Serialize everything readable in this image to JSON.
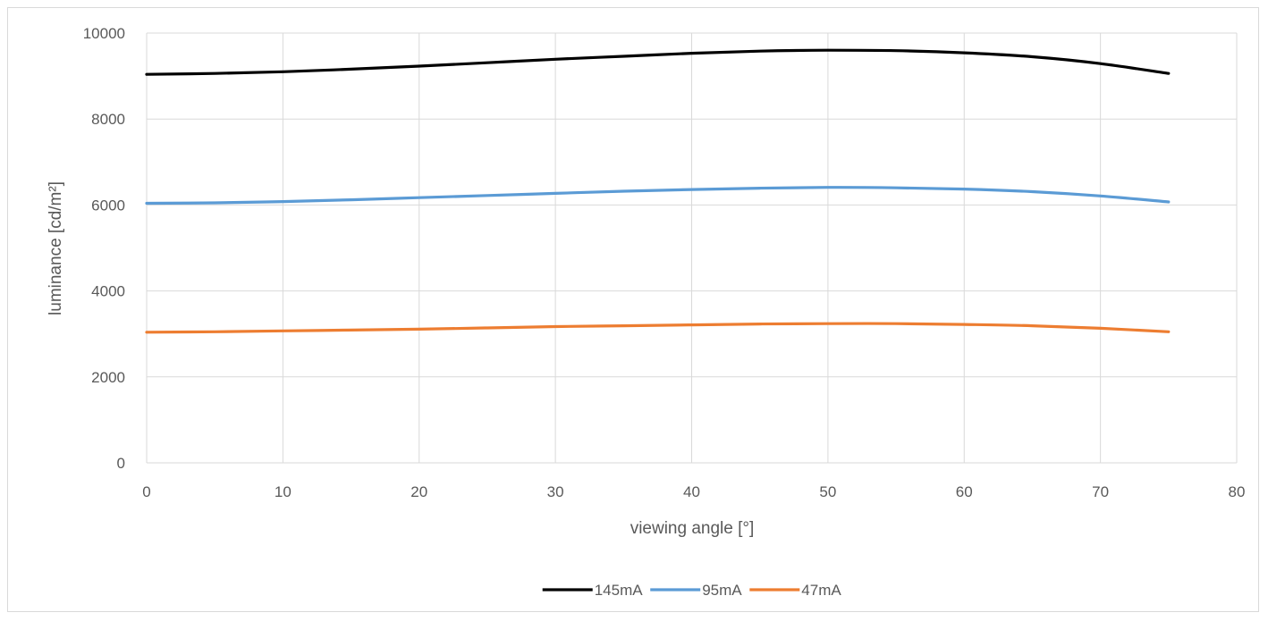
{
  "chart_data": {
    "type": "line",
    "title": "",
    "xlabel": "viewing angle [°]",
    "ylabel": "luminance [cd/m²]",
    "xlim": [
      0,
      80
    ],
    "ylim": [
      0,
      10000
    ],
    "xticks": [
      0,
      10,
      20,
      30,
      40,
      50,
      60,
      70,
      80
    ],
    "yticks": [
      0,
      2000,
      4000,
      6000,
      8000,
      10000
    ],
    "grid": true,
    "legend_position": "bottom",
    "series": [
      {
        "name": "145mA",
        "color": "#000000",
        "x": [
          0,
          5,
          10,
          15,
          20,
          25,
          30,
          35,
          40,
          45,
          50,
          55,
          60,
          65,
          70,
          75
        ],
        "y": [
          9040,
          9060,
          9100,
          9160,
          9230,
          9310,
          9390,
          9460,
          9530,
          9580,
          9600,
          9590,
          9540,
          9450,
          9290,
          9060
        ]
      },
      {
        "name": "95mA",
        "color": "#5b9bd5",
        "x": [
          0,
          5,
          10,
          15,
          20,
          25,
          30,
          35,
          40,
          45,
          50,
          55,
          60,
          65,
          70,
          75
        ],
        "y": [
          6040,
          6050,
          6080,
          6120,
          6170,
          6220,
          6270,
          6320,
          6360,
          6390,
          6410,
          6400,
          6370,
          6310,
          6210,
          6070
        ]
      },
      {
        "name": "47mA",
        "color": "#ed7d31",
        "x": [
          0,
          5,
          10,
          15,
          20,
          25,
          30,
          35,
          40,
          45,
          50,
          55,
          60,
          65,
          70,
          75
        ],
        "y": [
          3040,
          3050,
          3070,
          3090,
          3110,
          3140,
          3170,
          3190,
          3210,
          3230,
          3240,
          3240,
          3220,
          3190,
          3130,
          3050
        ]
      }
    ]
  }
}
